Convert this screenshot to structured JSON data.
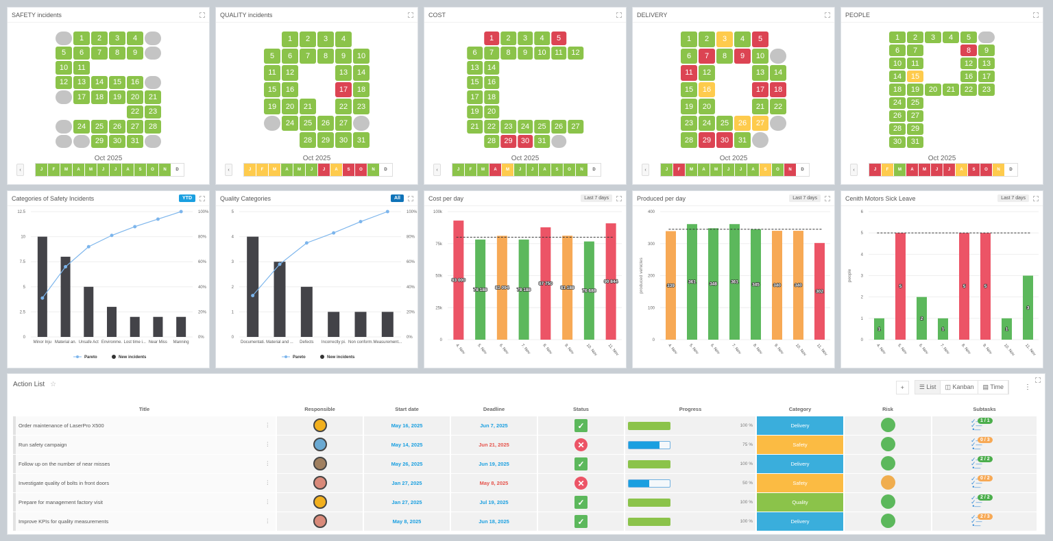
{
  "colors": {
    "green": "#8bc34a",
    "red": "#dc4453",
    "yellow": "#fecb4d",
    "gray": "#c4c4c4",
    "white": "#ffffff",
    "bar_red": "#ec5466",
    "bar_green": "#5cb85c",
    "bar_orange": "#f7a955",
    "pareto_bar": "#434348",
    "pareto_line": "#7cb5ec"
  },
  "kpi_boards": [
    {
      "title": "SAFETY incidents",
      "month_label": "Oct 2025",
      "prev": "‹",
      "cols": 6,
      "rows": [
        [
          "g",
          1,
          2,
          3,
          4,
          "g"
        ],
        [
          5,
          6,
          7,
          8,
          9,
          "g"
        ],
        [
          10,
          11,
          0,
          0,
          0,
          0
        ],
        [
          12,
          13,
          14,
          15,
          16,
          "g"
        ],
        [
          "g",
          17,
          18,
          19,
          20,
          21
        ],
        [
          0,
          0,
          0,
          0,
          22,
          23
        ],
        [
          "g",
          24,
          25,
          26,
          27,
          28
        ],
        [
          "g",
          "g",
          29,
          30,
          31,
          "g"
        ]
      ],
      "red": [],
      "yellow": [],
      "months": [
        [
          "J",
          "green"
        ],
        [
          "F",
          "green"
        ],
        [
          "M",
          "green"
        ],
        [
          "A",
          "green"
        ],
        [
          "M",
          "green"
        ],
        [
          "J",
          "green"
        ],
        [
          "J",
          "green"
        ],
        [
          "A",
          "green"
        ],
        [
          "S",
          "green"
        ],
        [
          "O",
          "green"
        ],
        [
          "N",
          "green"
        ],
        [
          "D",
          "white"
        ]
      ]
    },
    {
      "title": "QUALITY incidents",
      "month_label": "Oct 2025",
      "prev": "‹",
      "cols": 6,
      "rows": [
        [
          0,
          1,
          2,
          3,
          4,
          0
        ],
        [
          5,
          6,
          7,
          8,
          9,
          10
        ],
        [
          11,
          12,
          0,
          0,
          13,
          14
        ],
        [
          15,
          16,
          0,
          0,
          17,
          18
        ],
        [
          19,
          20,
          21,
          0,
          22,
          23
        ],
        [
          "g",
          24,
          25,
          26,
          27,
          "g"
        ],
        [
          0,
          0,
          28,
          29,
          30,
          31
        ]
      ],
      "red": [
        17
      ],
      "yellow": [],
      "months": [
        [
          "J",
          "yellow"
        ],
        [
          "F",
          "yellow"
        ],
        [
          "M",
          "yellow"
        ],
        [
          "A",
          "green"
        ],
        [
          "M",
          "green"
        ],
        [
          "J",
          "green"
        ],
        [
          "J",
          "red"
        ],
        [
          "A",
          "yellow"
        ],
        [
          "S",
          "red"
        ],
        [
          "O",
          "red"
        ],
        [
          "N",
          "green"
        ],
        [
          "D",
          "white"
        ]
      ]
    },
    {
      "title": "COST",
      "month_label": "Oct 2025",
      "prev": "‹",
      "cols": 7,
      "rows": [
        [
          0,
          1,
          2,
          3,
          4,
          5,
          0
        ],
        [
          6,
          7,
          8,
          9,
          10,
          11,
          12
        ],
        [
          13,
          14,
          0,
          0,
          0,
          0,
          0
        ],
        [
          15,
          16,
          0,
          0,
          0,
          0,
          0
        ],
        [
          17,
          18,
          0,
          0,
          0,
          0,
          0
        ],
        [
          19,
          20,
          0,
          0,
          0,
          0,
          0
        ],
        [
          21,
          22,
          23,
          24,
          25,
          26,
          27
        ],
        [
          0,
          28,
          29,
          30,
          31,
          "g",
          0
        ]
      ],
      "red": [
        1,
        5,
        29,
        30
      ],
      "yellow": [],
      "months": [
        [
          "J",
          "green"
        ],
        [
          "F",
          "green"
        ],
        [
          "M",
          "green"
        ],
        [
          "A",
          "red"
        ],
        [
          "M",
          "yellow"
        ],
        [
          "J",
          "green"
        ],
        [
          "J",
          "green"
        ],
        [
          "A",
          "green"
        ],
        [
          "S",
          "green"
        ],
        [
          "O",
          "green"
        ],
        [
          "N",
          "green"
        ],
        [
          "D",
          "white"
        ]
      ]
    },
    {
      "title": "DELIVERY",
      "month_label": "Oct 2025",
      "prev": "‹",
      "cols": 6,
      "rows": [
        [
          1,
          2,
          3,
          4,
          5,
          0
        ],
        [
          6,
          7,
          8,
          9,
          10,
          "g"
        ],
        [
          11,
          12,
          0,
          0,
          13,
          14
        ],
        [
          15,
          16,
          0,
          0,
          17,
          18
        ],
        [
          19,
          20,
          0,
          0,
          21,
          22
        ],
        [
          23,
          24,
          25,
          26,
          27,
          "g"
        ],
        [
          28,
          29,
          30,
          31,
          "g",
          0
        ]
      ],
      "red": [
        5,
        7,
        9,
        11,
        17,
        18,
        29,
        30
      ],
      "yellow": [
        3,
        16,
        26,
        27
      ],
      "months": [
        [
          "J",
          "green"
        ],
        [
          "F",
          "red"
        ],
        [
          "M",
          "green"
        ],
        [
          "A",
          "green"
        ],
        [
          "M",
          "green"
        ],
        [
          "J",
          "green"
        ],
        [
          "J",
          "green"
        ],
        [
          "A",
          "green"
        ],
        [
          "S",
          "yellow"
        ],
        [
          "O",
          "green"
        ],
        [
          "N",
          "red"
        ],
        [
          "D",
          "white"
        ]
      ]
    },
    {
      "title": "PEOPLE",
      "month_label": "Oct 2025",
      "prev": "‹",
      "cols": 6,
      "rows": [
        [
          1,
          2,
          3,
          4,
          5,
          "g"
        ],
        [
          6,
          7,
          0,
          0,
          8,
          9
        ],
        [
          10,
          11,
          0,
          0,
          12,
          13
        ],
        [
          14,
          15,
          0,
          0,
          16,
          17
        ],
        [
          18,
          19,
          20,
          21,
          22,
          23
        ],
        [
          24,
          25,
          0,
          0,
          0,
          0
        ],
        [
          26,
          27,
          0,
          0,
          0,
          0
        ],
        [
          28,
          29,
          0,
          0,
          0,
          0
        ],
        [
          30,
          31,
          0,
          0,
          0,
          0
        ]
      ],
      "red": [
        8
      ],
      "yellow": [
        15
      ],
      "months": [
        [
          "J",
          "red"
        ],
        [
          "F",
          "yellow"
        ],
        [
          "M",
          "green"
        ],
        [
          "A",
          "red"
        ],
        [
          "M",
          "red"
        ],
        [
          "J",
          "red"
        ],
        [
          "J",
          "red"
        ],
        [
          "A",
          "yellow"
        ],
        [
          "S",
          "red"
        ],
        [
          "O",
          "red"
        ],
        [
          "N",
          "yellow"
        ],
        [
          "D",
          "white"
        ]
      ]
    }
  ],
  "chart_data": [
    {
      "type": "bar",
      "title": "Categories of Safety Incidents",
      "badge": "YTD",
      "badge_style": "blue",
      "categories": [
        "Minor Inju",
        "Material an.",
        "Unsafe Act",
        "Environme.",
        "Lost time i...",
        "Near Miss",
        "Manning"
      ],
      "series": [
        {
          "name": "New incidents",
          "type": "bar",
          "values": [
            10,
            8,
            5,
            3,
            2,
            2,
            2
          ]
        },
        {
          "name": "Pareto",
          "type": "line",
          "axis": "right",
          "values": [
            31,
            56,
            72,
            81,
            88,
            94,
            100
          ]
        }
      ],
      "ylim": [
        0,
        12.5
      ],
      "yticks": [
        "0",
        "2.5",
        "5",
        "7.5",
        "10",
        "12.5"
      ],
      "y2lim": [
        0,
        100
      ],
      "y2ticks": [
        "0%",
        "20%",
        "40%",
        "60%",
        "80%",
        "100%"
      ],
      "legend": "bottom",
      "grid": true
    },
    {
      "type": "bar",
      "title": "Quality Categories",
      "badge": "All",
      "badge_style": "dblue",
      "categories": [
        "Documentati.",
        "Material and ...",
        "Defects",
        "Incorrectly pi.",
        "Non conform.",
        "Measurement..."
      ],
      "series": [
        {
          "name": "New incidents",
          "type": "bar",
          "values": [
            4,
            3,
            2,
            1,
            1,
            1
          ]
        },
        {
          "name": "Pareto",
          "type": "line",
          "axis": "right",
          "values": [
            33,
            58,
            75,
            83,
            92,
            100
          ]
        }
      ],
      "ylim": [
        0,
        5
      ],
      "yticks": [
        "0",
        "1",
        "2",
        "3",
        "4",
        "5"
      ],
      "y2lim": [
        0,
        100
      ],
      "y2ticks": [
        "0%",
        "20%",
        "40%",
        "60%",
        "80%",
        "100%"
      ],
      "legend": "bottom",
      "grid": true
    },
    {
      "type": "bar",
      "title": "Cost per day",
      "badge": "Last 7 days",
      "badge_style": "gray",
      "categories": [
        "4. Nov",
        "5. Nov",
        "6. Nov",
        "7. Nov",
        "8. Nov",
        "9. Nov",
        "10. Nov",
        "11. Nov"
      ],
      "values": [
        93000,
        78188,
        81094,
        78188,
        87750,
        81188,
        76688,
        90844
      ],
      "data_labels": [
        "93 000",
        "78 188",
        "81 094",
        "78 188",
        "87 750",
        "81 188",
        "76 688",
        "90 844"
      ],
      "bar_colors": [
        "red",
        "green",
        "orange",
        "green",
        "red",
        "orange",
        "green",
        "red"
      ],
      "target": 80000,
      "ylim": [
        0,
        100000
      ],
      "yticks": [
        "0",
        "25k",
        "50k",
        "75k",
        "100k"
      ],
      "ylabel": "",
      "grid": true
    },
    {
      "type": "bar",
      "title": "Produced per day",
      "badge": "Last 7 days",
      "badge_style": "gray",
      "categories": [
        "4. Nov",
        "5. Nov",
        "6. Nov",
        "7. Nov",
        "8. Nov",
        "9. Nov",
        "10. Nov",
        "11. Nov"
      ],
      "values": [
        339,
        361,
        348,
        361,
        345,
        340,
        340,
        302
      ],
      "data_labels": [
        "339",
        "361",
        "348",
        "361",
        "345",
        "340",
        "340",
        "302"
      ],
      "bar_colors": [
        "orange",
        "green",
        "green",
        "green",
        "green",
        "orange",
        "orange",
        "red"
      ],
      "target": 345,
      "ylim": [
        0,
        400
      ],
      "yticks": [
        "0",
        "100",
        "200",
        "300",
        "400"
      ],
      "ylabel": "produced vehicles",
      "grid": true
    },
    {
      "type": "bar",
      "title": "Cenith Motors Sick Leave",
      "badge": "Last 7 days",
      "badge_style": "gray",
      "categories": [
        "4. Nov",
        "5. Nov",
        "6. Nov",
        "7. Nov",
        "8. Nov",
        "9. Nov",
        "10. Nov",
        "11. Nov"
      ],
      "values": [
        1,
        5,
        2,
        1,
        5,
        5,
        1,
        3
      ],
      "data_labels": [
        "1",
        "5",
        "2",
        "1",
        "5",
        "5",
        "1",
        "3"
      ],
      "bar_colors": [
        "green",
        "red",
        "green",
        "green",
        "red",
        "red",
        "green",
        "green"
      ],
      "target": 5,
      "ylim": [
        0,
        6
      ],
      "yticks": [
        "0",
        "1",
        "2",
        "3",
        "4",
        "5",
        "6"
      ],
      "ylabel": "people",
      "grid": true
    }
  ],
  "action_list": {
    "title": "Action List",
    "add": "+",
    "views": [
      "List",
      "Kanban",
      "Time"
    ],
    "active_view": "List",
    "columns": [
      "Title",
      "Responsible",
      "Start date",
      "Deadline",
      "Status",
      "Progress",
      "Category",
      "Risk",
      "Subtasks"
    ],
    "rows": [
      {
        "title": "Order maintenance of LaserPro X500",
        "avatar": "#f2b01e",
        "start": "May 16, 2025",
        "deadline": "Jun 7, 2025",
        "late": false,
        "status": "done",
        "progress": 100,
        "progress_label": "100 %",
        "category": "Delivery",
        "category_color": "#3aaedc",
        "risk": "#5cb85c",
        "subtasks": "1 / 1",
        "sub_color": "#4cae4c"
      },
      {
        "title": "Run safety campaign",
        "avatar": "#6aa9d2",
        "start": "May 14, 2025",
        "deadline": "Jun 21, 2025",
        "late": true,
        "status": "failed",
        "progress": 75,
        "progress_label": "75 %",
        "category": "Safety",
        "category_color": "#fbbb43",
        "risk": "#5cb85c",
        "subtasks": "0 / 3",
        "sub_color": "#f7a955"
      },
      {
        "title": "Follow up on the number of near misses",
        "avatar": "#a08060",
        "start": "May 26, 2025",
        "deadline": "Jun 19, 2025",
        "late": false,
        "status": "done",
        "progress": 100,
        "progress_label": "100 %",
        "category": "Delivery",
        "category_color": "#3aaedc",
        "risk": "#5cb85c",
        "subtasks": "2 / 2",
        "sub_color": "#4cae4c"
      },
      {
        "title": "Investigate quality of bolts in front doors",
        "avatar": "#d98a7a",
        "start": "Jan 27, 2025",
        "deadline": "May 8, 2025",
        "late": true,
        "status": "failed",
        "progress": 50,
        "progress_label": "50 %",
        "category": "Safety",
        "category_color": "#fbbb43",
        "risk": "#f0ad4e",
        "subtasks": "0 / 2",
        "sub_color": "#f7a955"
      },
      {
        "title": "Prepare for management factory visit",
        "avatar": "#f2b01e",
        "start": "Jan 27, 2025",
        "deadline": "Jul 19, 2025",
        "late": false,
        "status": "done",
        "progress": 100,
        "progress_label": "100 %",
        "category": "Quality",
        "category_color": "#8bc34a",
        "risk": "#5cb85c",
        "subtasks": "2 / 2",
        "sub_color": "#4cae4c"
      },
      {
        "title": "Improve KPIs for quality measurements",
        "avatar": "#d98a7a",
        "start": "May 8, 2025",
        "deadline": "Jun 18, 2025",
        "late": false,
        "status": "done",
        "progress": 100,
        "progress_label": "100 %",
        "category": "Delivery",
        "category_color": "#3aaedc",
        "risk": "#5cb85c",
        "subtasks": "2 / 3",
        "sub_color": "#f7a955"
      }
    ]
  }
}
